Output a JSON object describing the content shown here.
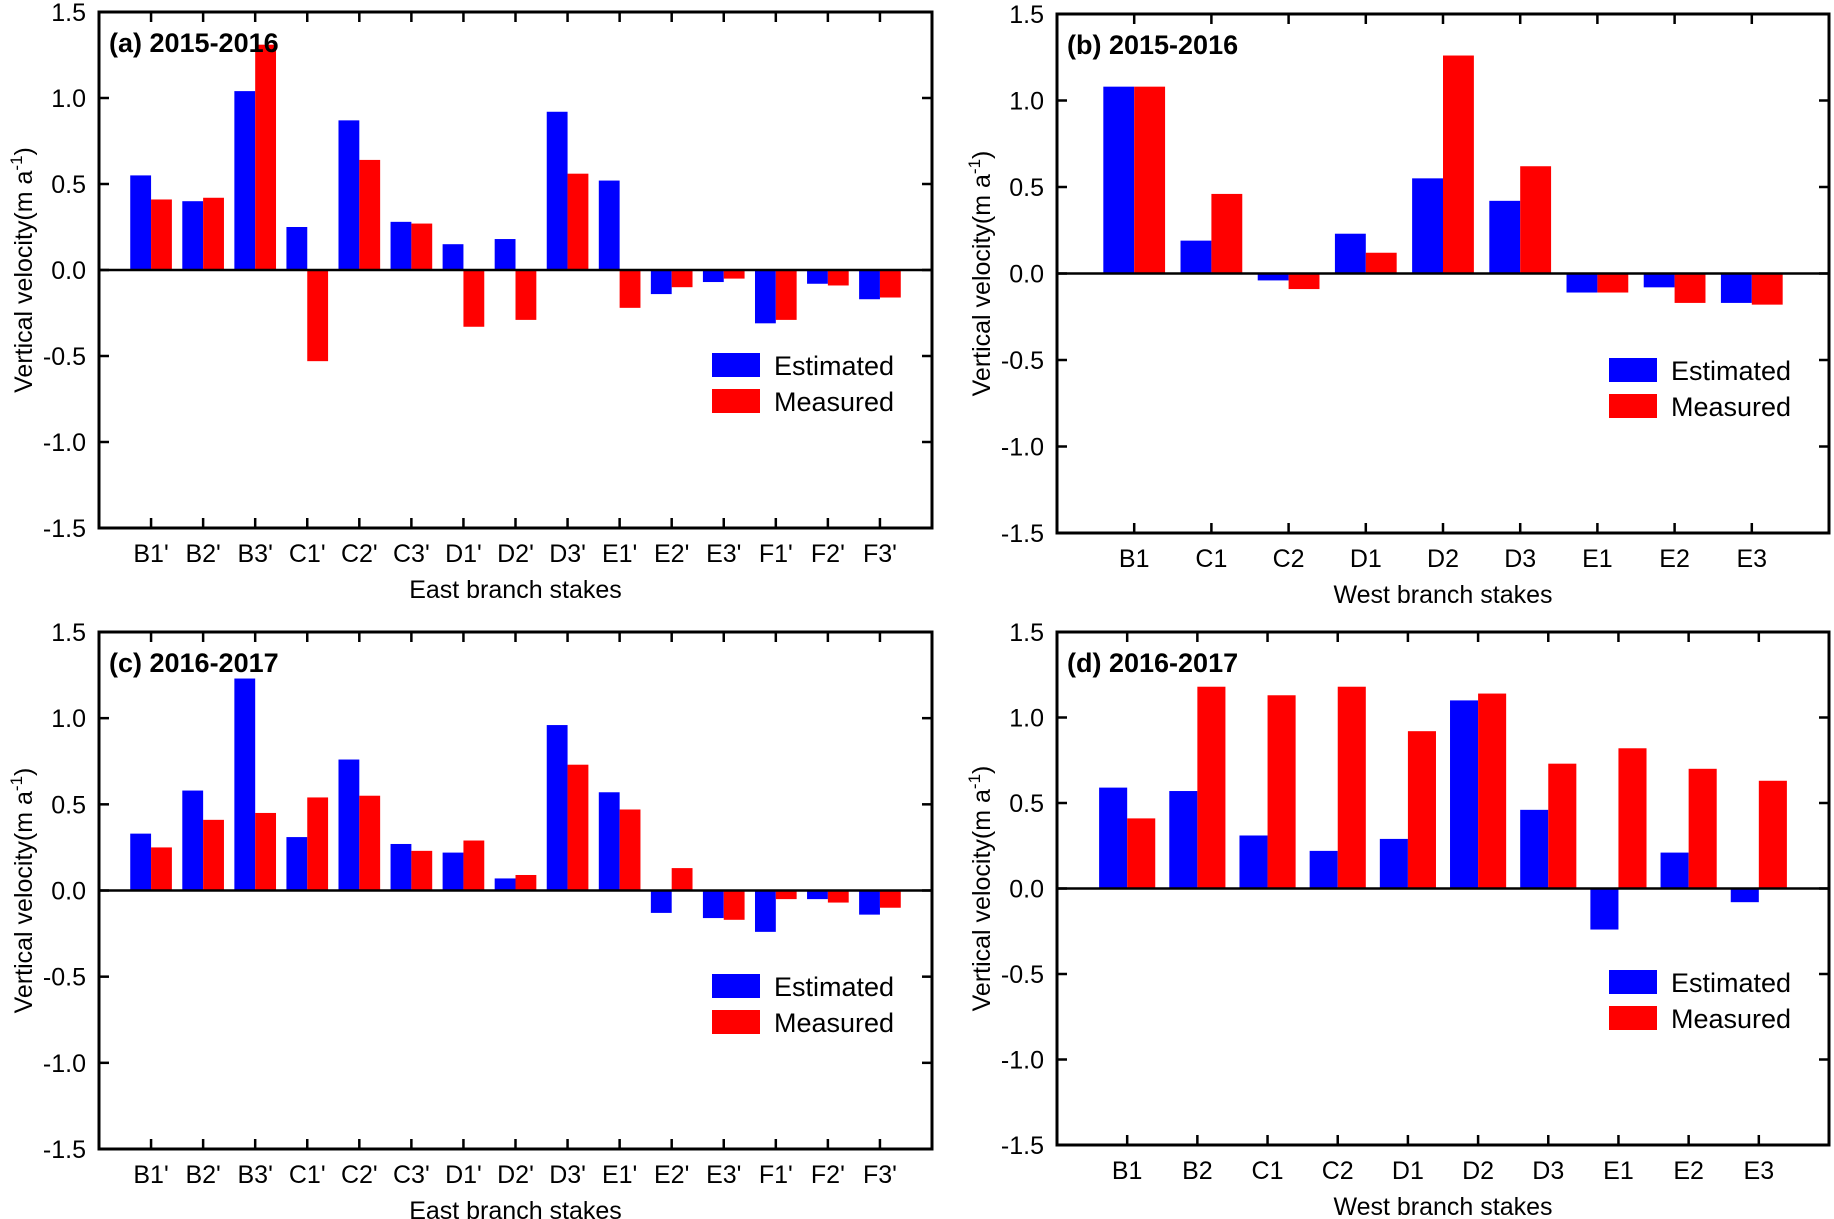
{
  "chart_data": [
    {
      "type": "bar",
      "panel": "a",
      "title": "(a) 2015-2016",
      "xlabel": "East branch stakes",
      "ylabel": "Vertical velocity(m a",
      "ylabel_sup": "-1",
      "ylabel_close": ")",
      "ylim": [
        -1.5,
        1.5
      ],
      "yticks": [
        "1.5",
        "1.0",
        "0.5",
        "0.0",
        "-0.5",
        "-1.0",
        "-1.5"
      ],
      "yticks_values": [
        1.5,
        1.0,
        0.5,
        0.0,
        -0.5,
        -1.0,
        -1.5
      ],
      "legend_position": "bottom-right",
      "categories": [
        "B1'",
        "B2'",
        "B3'",
        "C1'",
        "C2'",
        "C3'",
        "D1'",
        "D2'",
        "D3'",
        "E1'",
        "E2'",
        "E3'",
        "F1'",
        "F2'",
        "F3'"
      ],
      "series": [
        {
          "name": "Estimated",
          "color": "#0000ff",
          "values": [
            0.55,
            0.4,
            1.04,
            0.25,
            0.87,
            0.28,
            0.15,
            0.18,
            0.92,
            0.52,
            -0.14,
            -0.07,
            -0.31,
            -0.08,
            -0.17
          ]
        },
        {
          "name": "Measured",
          "color": "#ff0000",
          "values": [
            0.41,
            0.42,
            1.31,
            -0.53,
            0.64,
            0.27,
            -0.33,
            -0.29,
            0.56,
            -0.22,
            -0.1,
            -0.05,
            -0.29,
            -0.09,
            -0.16
          ]
        }
      ]
    },
    {
      "type": "bar",
      "panel": "b",
      "title": "(b) 2015-2016",
      "xlabel": "West branch stakes",
      "ylabel": "Vertical velocity(m a",
      "ylabel_sup": "-1",
      "ylabel_close": ")",
      "ylim": [
        -1.5,
        1.5
      ],
      "yticks": [
        "1.5",
        "1.0",
        "0.5",
        "0.0",
        "-0.5",
        "-1.0",
        "-1.5"
      ],
      "yticks_values": [
        1.5,
        1.0,
        0.5,
        0.0,
        -0.5,
        -1.0,
        -1.5
      ],
      "legend_position": "bottom-right",
      "categories": [
        "B1",
        "C1",
        "C2",
        "D1",
        "D2",
        "D3",
        "E1",
        "E2",
        "E3"
      ],
      "series": [
        {
          "name": "Estimated",
          "color": "#0000ff",
          "values": [
            1.08,
            0.19,
            -0.04,
            0.23,
            0.55,
            0.42,
            -0.11,
            -0.08,
            -0.17
          ]
        },
        {
          "name": "Measured",
          "color": "#ff0000",
          "values": [
            1.08,
            0.46,
            -0.09,
            0.12,
            1.26,
            0.62,
            -0.11,
            -0.17,
            -0.18
          ]
        }
      ]
    },
    {
      "type": "bar",
      "panel": "c",
      "title": "(c) 2016-2017",
      "xlabel": "East branch stakes",
      "ylabel": "Vertical velocity(m a",
      "ylabel_sup": "-1",
      "ylabel_close": ")",
      "ylim": [
        -1.5,
        1.5
      ],
      "yticks": [
        "1.5",
        "1.0",
        "0.5",
        "0.0",
        "-0.5",
        "-1.0",
        "-1.5"
      ],
      "yticks_values": [
        1.5,
        1.0,
        0.5,
        0.0,
        -0.5,
        -1.0,
        -1.5
      ],
      "legend_position": "bottom-right",
      "categories": [
        "B1'",
        "B2'",
        "B3'",
        "C1'",
        "C2'",
        "C3'",
        "D1'",
        "D2'",
        "D3'",
        "E1'",
        "E2'",
        "E3'",
        "F1'",
        "F2'",
        "F3'"
      ],
      "series": [
        {
          "name": "Estimated",
          "color": "#0000ff",
          "values": [
            0.33,
            0.58,
            1.23,
            0.31,
            0.76,
            0.27,
            0.22,
            0.07,
            0.96,
            0.57,
            -0.13,
            -0.16,
            -0.24,
            -0.05,
            -0.14
          ]
        },
        {
          "name": "Measured",
          "color": "#ff0000",
          "values": [
            0.25,
            0.41,
            0.45,
            0.54,
            0.55,
            0.23,
            0.29,
            0.09,
            0.73,
            0.47,
            0.13,
            -0.17,
            -0.05,
            -0.07,
            -0.1
          ]
        }
      ]
    },
    {
      "type": "bar",
      "panel": "d",
      "title": "(d) 2016-2017",
      "xlabel": "West branch stakes",
      "ylabel": "Vertical velocity(m a",
      "ylabel_sup": "-1",
      "ylabel_close": ")",
      "ylim": [
        -1.5,
        1.5
      ],
      "yticks": [
        "1.5",
        "1.0",
        "0.5",
        "0.0",
        "-0.5",
        "-1.0",
        "-1.5"
      ],
      "yticks_values": [
        1.5,
        1.0,
        0.5,
        0.0,
        -0.5,
        -1.0,
        -1.5
      ],
      "legend_position": "bottom-right",
      "categories": [
        "B1",
        "B2",
        "C1",
        "C2",
        "D1",
        "D2",
        "D3",
        "E1",
        "E2",
        "E3"
      ],
      "series": [
        {
          "name": "Estimated",
          "color": "#0000ff",
          "values": [
            0.59,
            0.57,
            0.31,
            0.22,
            0.29,
            1.1,
            0.46,
            -0.24,
            0.21,
            -0.08
          ]
        },
        {
          "name": "Measured",
          "color": "#ff0000",
          "values": [
            0.41,
            1.18,
            1.13,
            1.18,
            0.92,
            1.14,
            0.73,
            0.82,
            0.7,
            0.63
          ]
        }
      ]
    }
  ]
}
